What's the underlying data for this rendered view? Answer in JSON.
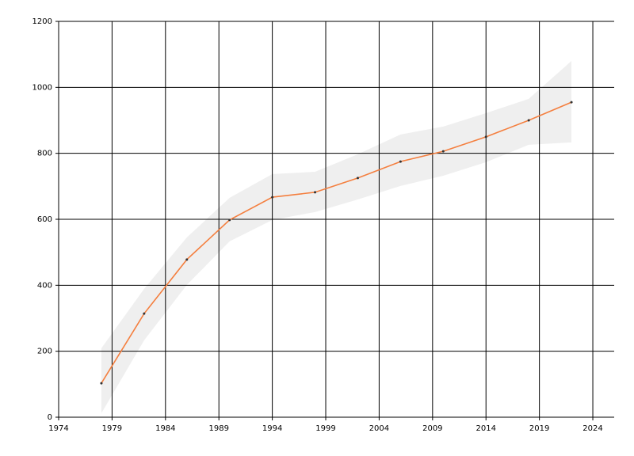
{
  "chart_data": {
    "type": "line",
    "x": [
      1978,
      1982,
      1986,
      1990,
      1994,
      1998,
      2002,
      2006,
      2010,
      2014,
      2018,
      2022
    ],
    "values": [
      103,
      314,
      478,
      598,
      667,
      682,
      725,
      775,
      806,
      850,
      900,
      955
    ],
    "band": {
      "upper": [
        209,
        389,
        545,
        665,
        737,
        744,
        797,
        857,
        881,
        922,
        965,
        1080
      ],
      "lower": [
        12,
        233,
        401,
        533,
        598,
        622,
        660,
        701,
        732,
        773,
        826,
        833
      ],
      "color": "#efefef"
    },
    "color": "#f47f3f",
    "marker_color": "#333333",
    "xlim": [
      1974,
      2026
    ],
    "xticks": [
      1974,
      1979,
      1984,
      1989,
      1994,
      1999,
      2004,
      2009,
      2014,
      2019,
      2024
    ],
    "ylim": [
      0,
      1200
    ],
    "yticks": [
      0,
      200,
      400,
      600,
      800,
      1000,
      1200
    ],
    "grid": true
  }
}
